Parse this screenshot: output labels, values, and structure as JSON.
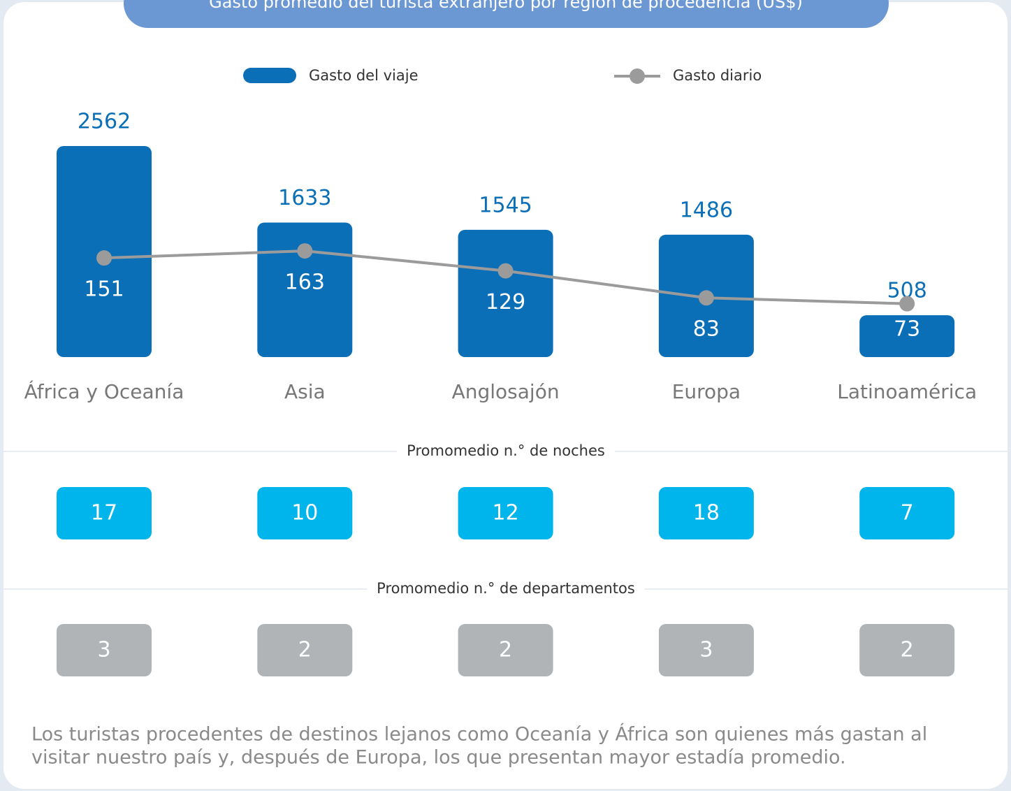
{
  "chart_data": {
    "type": "bar",
    "title": "Gasto promedio del turista extranjero por región de procedencia (US$)",
    "categories": [
      "África y Oceanía",
      "Asia",
      "Anglosajón",
      "Europa",
      "Latinoamérica"
    ],
    "series": [
      {
        "name": "Gasto del viaje",
        "type": "bar",
        "color": "#0b6fb8",
        "values": [
          2562,
          1633,
          1545,
          1486,
          508
        ]
      },
      {
        "name": "Gasto diario",
        "type": "line",
        "color": "#9b9b9b",
        "values": [
          151,
          163,
          129,
          83,
          73
        ]
      }
    ]
  },
  "panels": [
    {
      "title": "Promomedio n.° de noches",
      "color": "#00b4ec",
      "values": [
        17,
        10,
        12,
        18,
        7
      ]
    },
    {
      "title": "Promomedio n.° de departamentos",
      "color": "#b1b4b7",
      "values": [
        3,
        2,
        2,
        3,
        2
      ]
    }
  ],
  "note": [
    "Los turistas procedentes de destinos lejanos como Oceanía y África son quienes más gastan al",
    "visitar nuestro país y, después de Europa, los que presentan mayor estadía promedio."
  ]
}
